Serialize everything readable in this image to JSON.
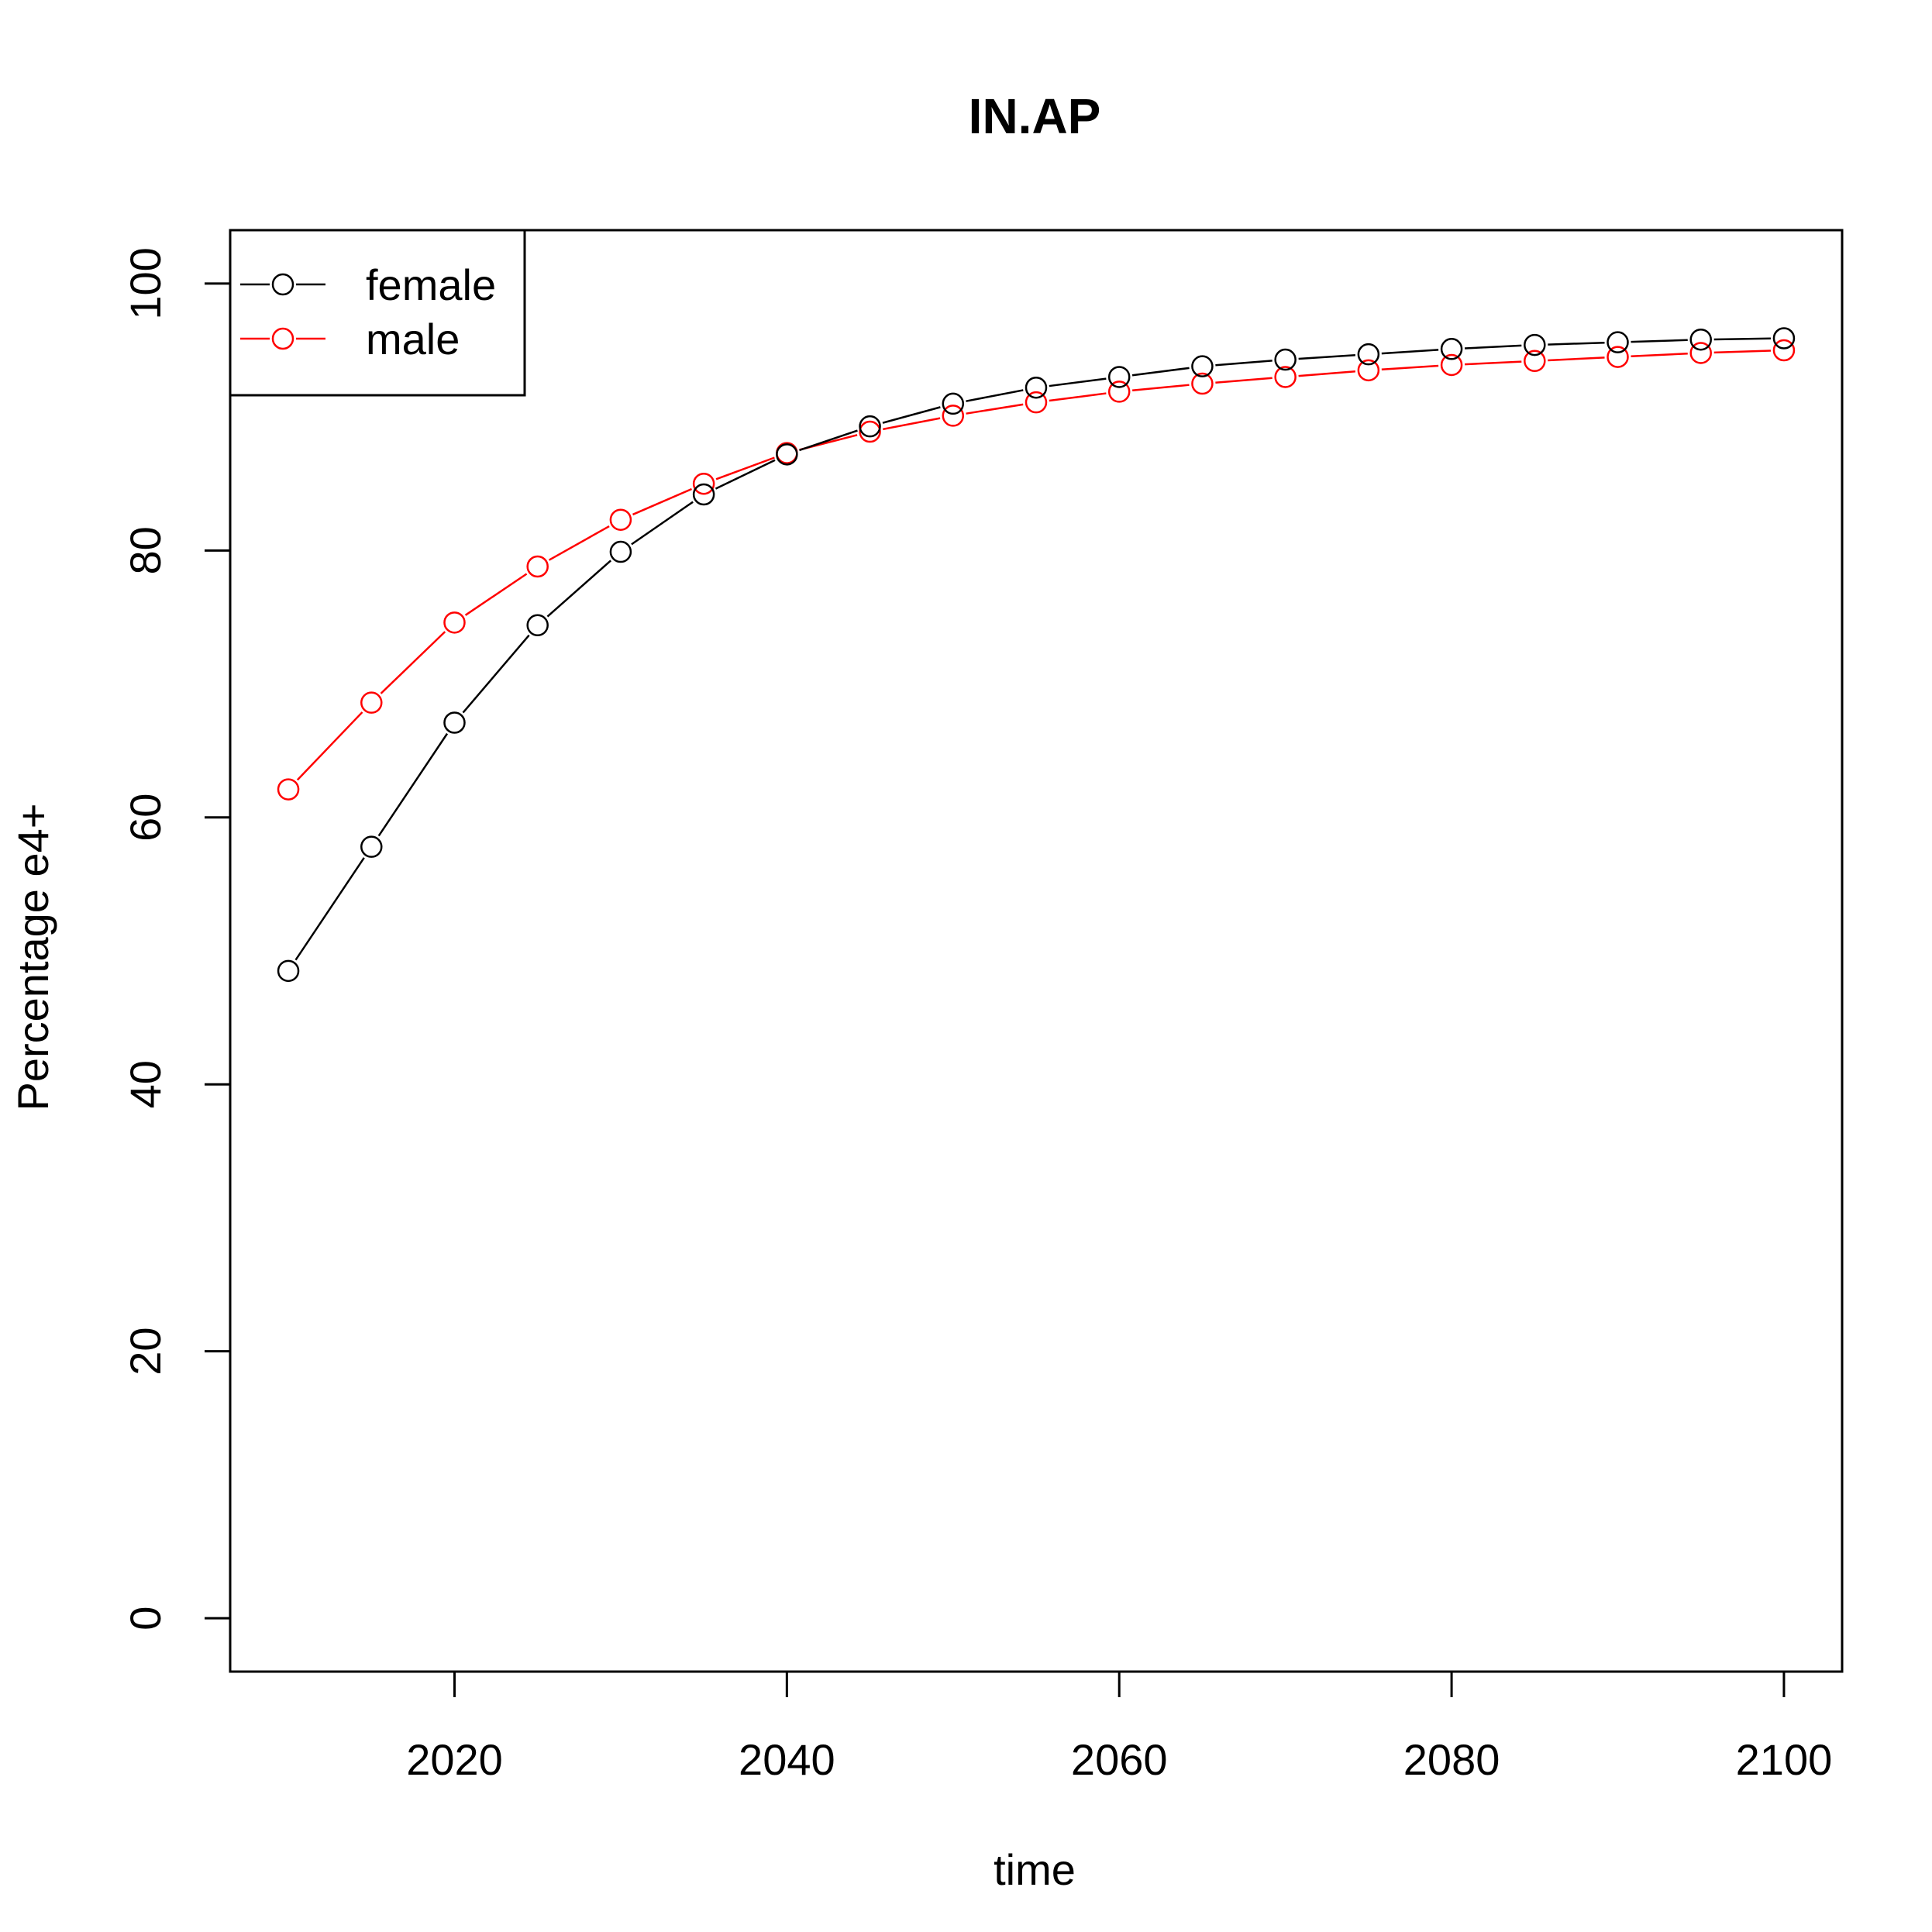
{
  "chart_data": {
    "type": "line",
    "title": "IN.AP",
    "xlabel": "time",
    "ylabel": "Percentage e4+",
    "xlim": [
      2006.5,
      2103.5
    ],
    "ylim": [
      -4,
      104
    ],
    "x_ticks": [
      2020,
      2040,
      2060,
      2080,
      2100
    ],
    "y_ticks": [
      0,
      20,
      40,
      60,
      80,
      100
    ],
    "x": [
      2010,
      2015,
      2020,
      2025,
      2030,
      2035,
      2040,
      2045,
      2050,
      2055,
      2060,
      2065,
      2070,
      2075,
      2080,
      2085,
      2090,
      2095,
      2100
    ],
    "series": [
      {
        "name": "female",
        "color": "#000000",
        "values": [
          48.5,
          57.8,
          67.1,
          74.4,
          79.9,
          84.2,
          87.2,
          89.3,
          91.0,
          92.2,
          93.0,
          93.8,
          94.3,
          94.7,
          95.1,
          95.4,
          95.6,
          95.8,
          95.9
        ]
      },
      {
        "name": "male",
        "color": "#ff0000",
        "values": [
          62.1,
          68.6,
          74.6,
          78.8,
          82.3,
          85.0,
          87.3,
          88.9,
          90.1,
          91.1,
          91.9,
          92.5,
          93.0,
          93.5,
          93.9,
          94.2,
          94.5,
          94.8,
          95.0
        ]
      }
    ],
    "grid": false,
    "legend_position": "top-left",
    "marker": "open-circle"
  }
}
